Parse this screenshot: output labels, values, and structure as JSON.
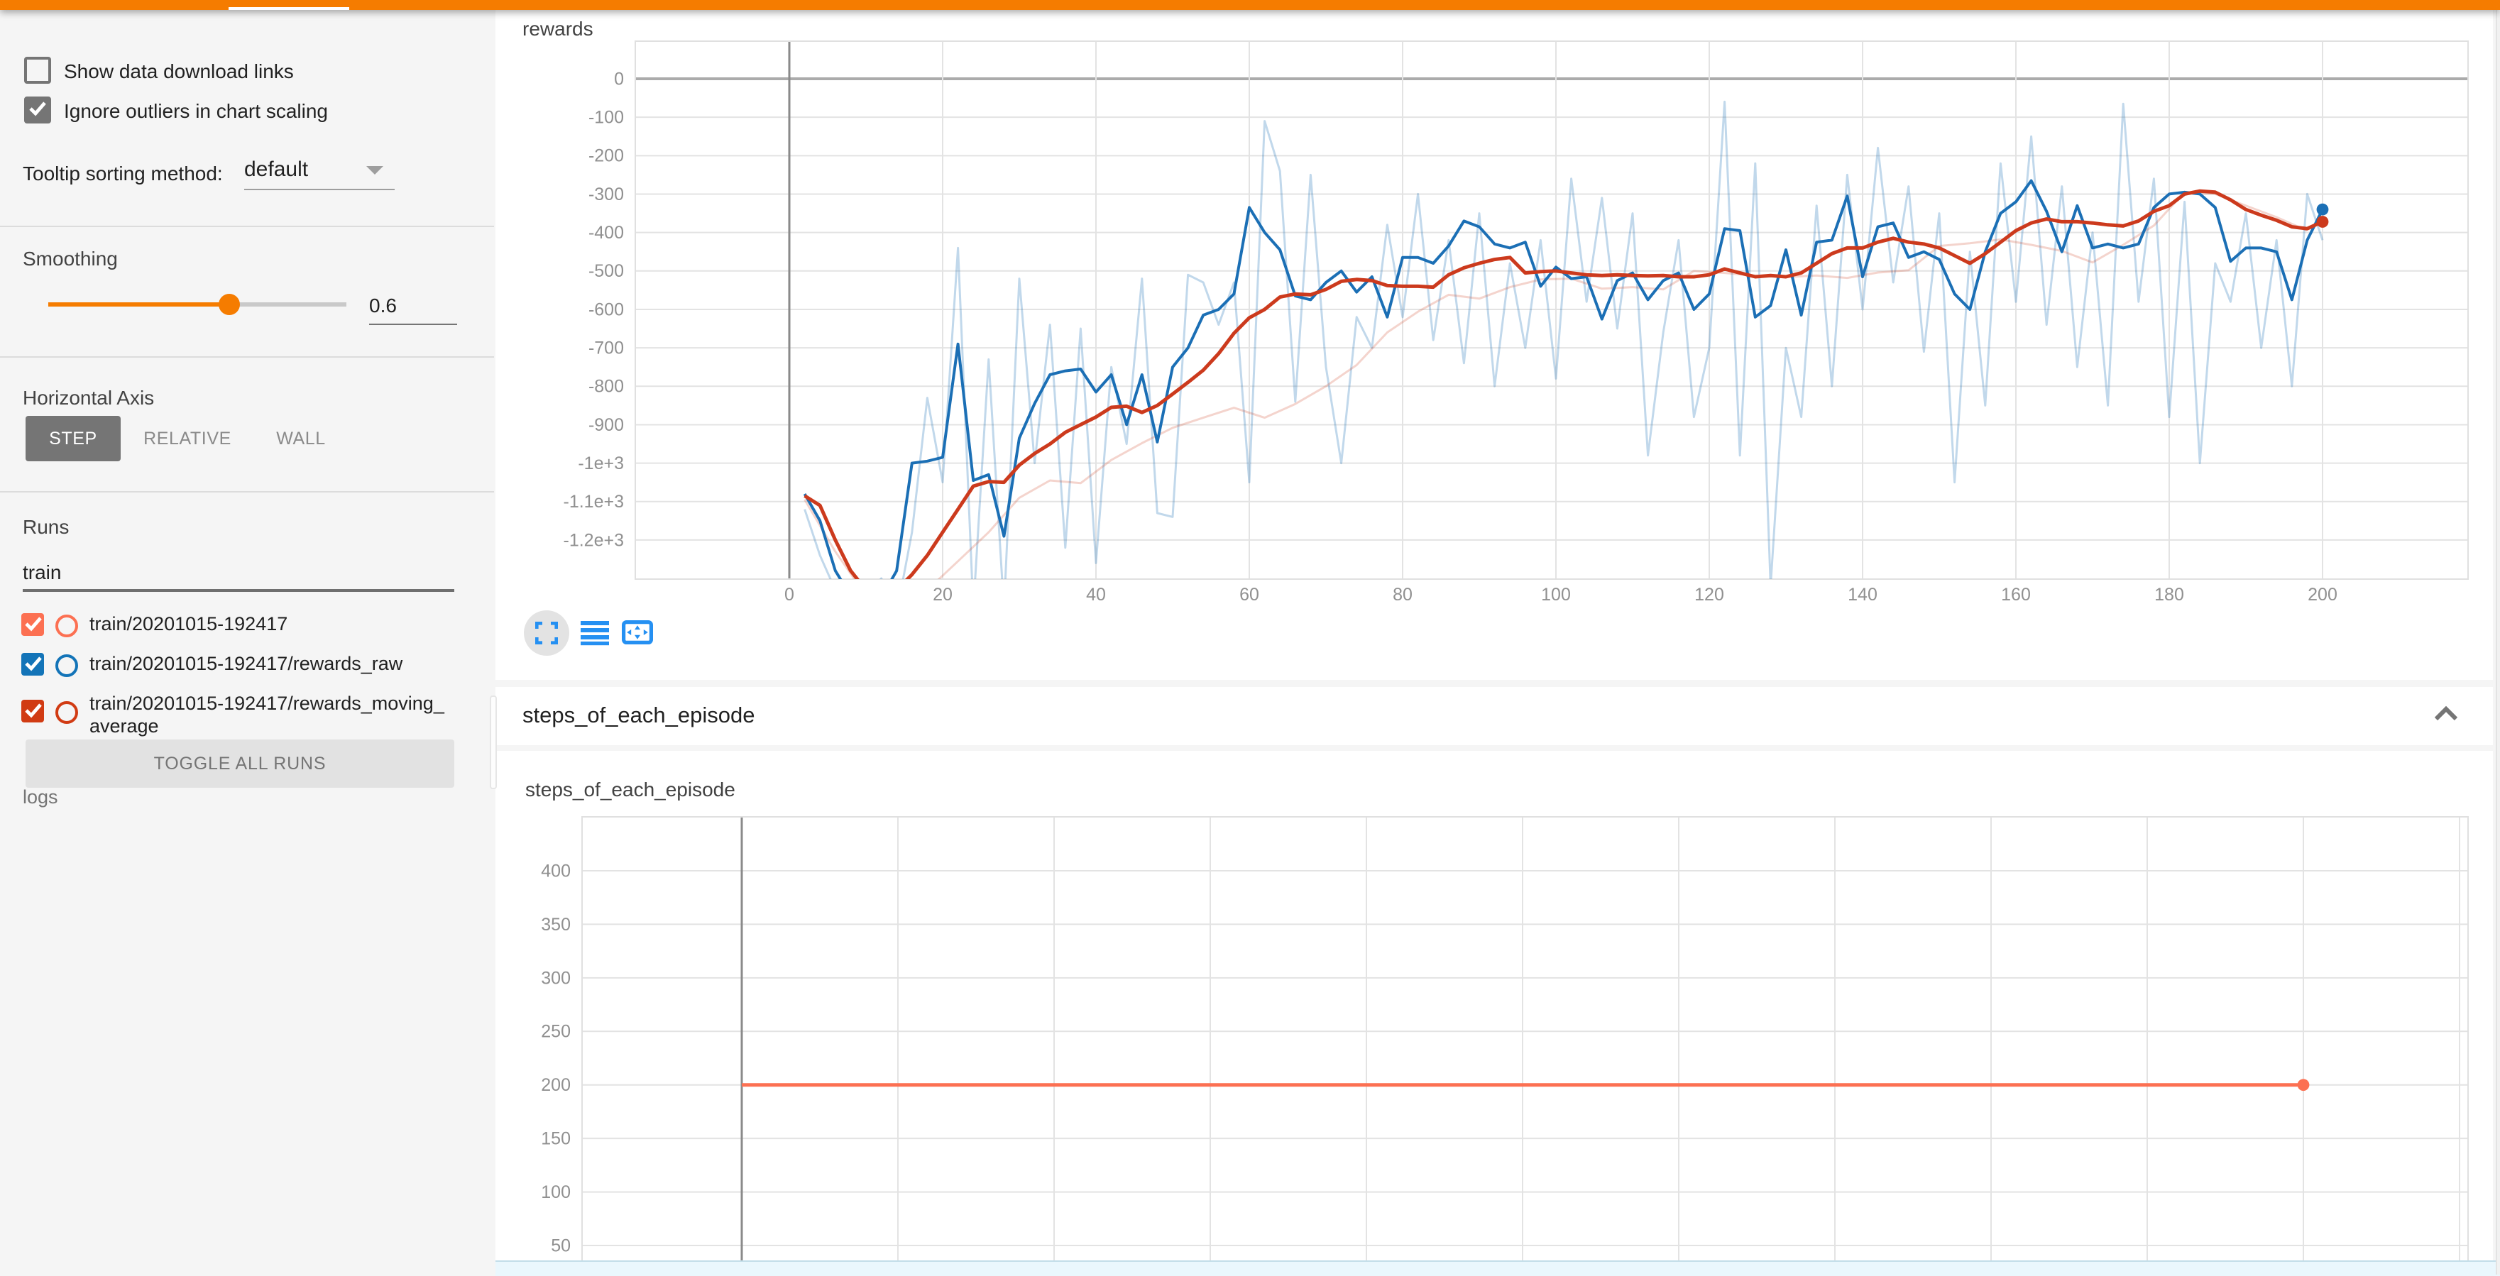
{
  "header": {
    "accent_color": "#f57c00",
    "active_tab_indicator_color": "#ffffff"
  },
  "sidebar": {
    "checkboxes": [
      {
        "label": "Show data download links",
        "checked": false
      },
      {
        "label": "Ignore outliers in chart scaling",
        "checked": true
      }
    ],
    "tooltip_sort": {
      "label": "Tooltip sorting method:",
      "value": "default"
    },
    "smoothing": {
      "label": "Smoothing",
      "value": "0.6",
      "fraction": 0.6,
      "accent_color": "#f57c00"
    },
    "horizontal_axis": {
      "label": "Horizontal Axis",
      "options": [
        "STEP",
        "RELATIVE",
        "WALL"
      ],
      "selected": "STEP"
    },
    "runs": {
      "label": "Runs",
      "filter_value": "train",
      "items": [
        {
          "label": "train/20201015-192417",
          "color": "#fc7052",
          "checked": true
        },
        {
          "label": "train/20201015-192417/rewards_raw",
          "color": "#1374b8",
          "checked": true
        },
        {
          "label": "train/20201015-192417/rewards_moving_average",
          "color": "#d13b13",
          "checked": true
        }
      ],
      "toggle_button": "TOGGLE ALL RUNS",
      "footer": "logs"
    }
  },
  "main": {
    "rewards_card": {
      "title": "rewards"
    },
    "section_header": {
      "title": "steps_of_each_episode",
      "collapse_icon": "chevron-up-icon"
    },
    "steps_card": {
      "title": "steps_of_each_episode"
    },
    "toolbar_icons": [
      "fullscreen-icon",
      "log-scale-icon",
      "fit-domain-icon"
    ],
    "toolbar_icon_color": "#2590f2"
  },
  "chart_data": [
    {
      "id": "rewards",
      "type": "line",
      "title": "rewards",
      "xlabel": "",
      "ylabel": "",
      "x_range": [
        -20,
        219
      ],
      "y_range": [
        -1302,
        98
      ],
      "grid": true,
      "legend_position": "none",
      "x_ticks": [
        {
          "v": 0,
          "label": "0"
        },
        {
          "v": 20,
          "label": "20"
        },
        {
          "v": 40,
          "label": "40"
        },
        {
          "v": 60,
          "label": "60"
        },
        {
          "v": 80,
          "label": "80"
        },
        {
          "v": 100,
          "label": "100"
        },
        {
          "v": 120,
          "label": "120"
        },
        {
          "v": 140,
          "label": "140"
        },
        {
          "v": 160,
          "label": "160"
        },
        {
          "v": 180,
          "label": "180"
        },
        {
          "v": 200,
          "label": "200"
        }
      ],
      "y_ticks": [
        {
          "v": 0,
          "label": "0"
        },
        {
          "v": -100,
          "label": "-100"
        },
        {
          "v": -200,
          "label": "-200"
        },
        {
          "v": -300,
          "label": "-300"
        },
        {
          "v": -400,
          "label": "-400"
        },
        {
          "v": -500,
          "label": "-500"
        },
        {
          "v": -600,
          "label": "-600"
        },
        {
          "v": -700,
          "label": "-700"
        },
        {
          "v": -800,
          "label": "-800"
        },
        {
          "v": -900,
          "label": "-900"
        },
        {
          "v": -1000,
          "label": "-1e+3"
        },
        {
          "v": -1100,
          "label": "-1.1e+3"
        },
        {
          "v": -1200,
          "label": "-1.2e+3"
        }
      ],
      "series": [
        {
          "name": "train/20201015-192417/rewards_raw (unsmoothed)",
          "color": "#1b6fb5",
          "opacity": 0.27,
          "width": 1.5,
          "dot": false,
          "x0": 2,
          "dx": 2,
          "values": [
            -1120,
            -1240,
            -1330,
            -1390,
            -1350,
            -1300,
            -1390,
            -1180,
            -830,
            -1050,
            -440,
            -1380,
            -730,
            -1380,
            -520,
            -1000,
            -640,
            -1220,
            -650,
            -1260,
            -750,
            -950,
            -520,
            -1130,
            -1140,
            -510,
            -530,
            -640,
            -530,
            -1050,
            -110,
            -240,
            -840,
            -250,
            -750,
            -1000,
            -620,
            -700,
            -380,
            -620,
            -300,
            -680,
            -420,
            -740,
            -350,
            -800,
            -480,
            -700,
            -420,
            -780,
            -260,
            -580,
            -310,
            -650,
            -350,
            -980,
            -660,
            -420,
            -880,
            -700,
            -60,
            -980,
            -220,
            -1320,
            -700,
            -880,
            -330,
            -800,
            -250,
            -600,
            -180,
            -530,
            -280,
            -710,
            -350,
            -1050,
            -450,
            -850,
            -220,
            -580,
            -150,
            -640,
            -280,
            -750,
            -400,
            -850,
            -65,
            -580,
            -260,
            -880,
            -320,
            -1000,
            -480,
            -580,
            -350,
            -700,
            -420,
            -800,
            -300,
            -420
          ]
        },
        {
          "name": "train/20201015-192417/rewards_moving_average (unsmoothed)",
          "color": "#cc3a1d",
          "opacity": 0.22,
          "width": 1.5,
          "dot": false,
          "x0": 2,
          "dx": 4,
          "values": [
            -1095,
            -1230,
            -1345,
            -1370,
            -1330,
            -1255,
            -1180,
            -1090,
            -1045,
            -1052,
            -992,
            -948,
            -908,
            -882,
            -856,
            -882,
            -846,
            -800,
            -745,
            -660,
            -606,
            -562,
            -572,
            -542,
            -522,
            -520,
            -546,
            -542,
            -548,
            -500,
            -505,
            -512,
            -516,
            -512,
            -518,
            -504,
            -498,
            -435,
            -428,
            -418,
            -432,
            -448,
            -478,
            -432,
            -382,
            -295,
            -300,
            -330,
            -360,
            -395
          ]
        },
        {
          "name": "train/20201015-192417/rewards_raw",
          "color": "#1b6fb5",
          "opacity": 1,
          "width": 2,
          "dot": true,
          "x0": 2,
          "dx": 2,
          "values": [
            -1080,
            -1150,
            -1280,
            -1345,
            -1365,
            -1350,
            -1280,
            -1000,
            -995,
            -985,
            -690,
            -1045,
            -1030,
            -1190,
            -935,
            -845,
            -770,
            -760,
            -755,
            -815,
            -770,
            -900,
            -770,
            -945,
            -750,
            -700,
            -615,
            -600,
            -560,
            -335,
            -400,
            -445,
            -565,
            -575,
            -530,
            -500,
            -555,
            -515,
            -620,
            -465,
            -465,
            -480,
            -435,
            -370,
            -385,
            -430,
            -440,
            -425,
            -540,
            -490,
            -520,
            -515,
            -625,
            -525,
            -505,
            -575,
            -525,
            -505,
            -600,
            -560,
            -390,
            -395,
            -620,
            -590,
            -445,
            -615,
            -425,
            -420,
            -305,
            -515,
            -385,
            -375,
            -465,
            -450,
            -470,
            -560,
            -600,
            -450,
            -350,
            -320,
            -265,
            -345,
            -450,
            -330,
            -440,
            -430,
            -440,
            -430,
            -335,
            -300,
            -295,
            -300,
            -335,
            -475,
            -440,
            -440,
            -450,
            -575,
            -420,
            -340
          ]
        },
        {
          "name": "train/20201015-192417/rewards_moving_average",
          "color": "#cc3a1d",
          "opacity": 1,
          "width": 2.5,
          "dot": true,
          "x0": 2,
          "dx": 2,
          "values": [
            -1085,
            -1110,
            -1200,
            -1280,
            -1330,
            -1345,
            -1330,
            -1290,
            -1240,
            -1180,
            -1120,
            -1060,
            -1048,
            -1050,
            -1005,
            -975,
            -950,
            -920,
            -900,
            -880,
            -855,
            -852,
            -868,
            -850,
            -820,
            -790,
            -758,
            -715,
            -662,
            -622,
            -600,
            -568,
            -560,
            -562,
            -548,
            -527,
            -522,
            -525,
            -538,
            -540,
            -540,
            -542,
            -510,
            -492,
            -480,
            -470,
            -465,
            -505,
            -502,
            -500,
            -505,
            -510,
            -512,
            -510,
            -512,
            -513,
            -512,
            -515,
            -515,
            -510,
            -495,
            -505,
            -515,
            -512,
            -515,
            -505,
            -480,
            -455,
            -440,
            -440,
            -425,
            -415,
            -425,
            -430,
            -440,
            -460,
            -480,
            -455,
            -425,
            -395,
            -375,
            -365,
            -372,
            -372,
            -375,
            -380,
            -383,
            -370,
            -345,
            -330,
            -300,
            -292,
            -295,
            -315,
            -340,
            -355,
            -368,
            -385,
            -390,
            -372
          ]
        }
      ]
    },
    {
      "id": "steps",
      "type": "line",
      "title": "steps_of_each_episode",
      "xlabel": "",
      "ylabel": "",
      "x_range": [
        -20,
        221
      ],
      "y_range": [
        22,
        450
      ],
      "grid": true,
      "legend_position": "none",
      "x_ticks": [
        {
          "v": 0,
          "label": ""
        },
        {
          "v": 20,
          "label": ""
        },
        {
          "v": 40,
          "label": ""
        },
        {
          "v": 60,
          "label": ""
        },
        {
          "v": 80,
          "label": ""
        },
        {
          "v": 100,
          "label": ""
        },
        {
          "v": 120,
          "label": ""
        },
        {
          "v": 140,
          "label": ""
        },
        {
          "v": 160,
          "label": ""
        },
        {
          "v": 180,
          "label": ""
        },
        {
          "v": 200,
          "label": ""
        },
        {
          "v": 220,
          "label": ""
        }
      ],
      "y_ticks": [
        {
          "v": 400,
          "label": "400"
        },
        {
          "v": 350,
          "label": "350"
        },
        {
          "v": 300,
          "label": "300"
        },
        {
          "v": 250,
          "label": "250"
        },
        {
          "v": 200,
          "label": "200"
        },
        {
          "v": 150,
          "label": "150"
        },
        {
          "v": 100,
          "label": "100"
        },
        {
          "v": 50,
          "label": "50"
        }
      ],
      "series": [
        {
          "name": "train/20201015-192417 steps_of_each_episode",
          "color": "#fc7052",
          "opacity": 1,
          "width": 2.5,
          "dot": true,
          "x0": 0,
          "dx": 200,
          "values": [
            200,
            200
          ]
        }
      ]
    }
  ]
}
